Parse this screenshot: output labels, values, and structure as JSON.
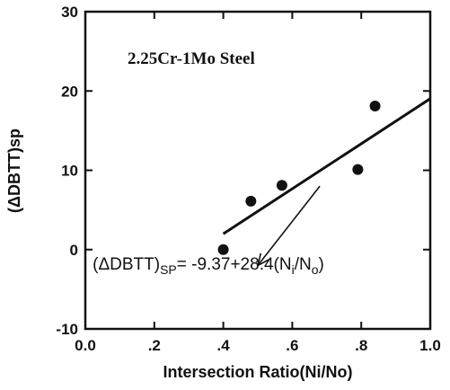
{
  "chart_data": {
    "type": "scatter",
    "title": "2.25Cr-1Mo Steel",
    "xlabel": "Intersection Ratio(Ni/No)",
    "ylabel": "(ΔDBTT)sp",
    "xlim": [
      0.0,
      1.0
    ],
    "ylim": [
      -10,
      30
    ],
    "x_tick_labels": [
      "0.0",
      ".2",
      ".4",
      ".6",
      ".8",
      "1.0"
    ],
    "y_tick_labels": [
      "-10",
      "0",
      "10",
      "20",
      "30"
    ],
    "x_tick_values": [
      0.0,
      0.2,
      0.4,
      0.6,
      0.8,
      1.0
    ],
    "y_tick_values": [
      -10,
      0,
      10,
      20,
      30
    ],
    "grid": false,
    "points": [
      {
        "x": 0.4,
        "y": 0.0
      },
      {
        "x": 0.48,
        "y": 6.1
      },
      {
        "x": 0.57,
        "y": 8.1
      },
      {
        "x": 0.79,
        "y": 10.1
      },
      {
        "x": 0.84,
        "y": 18.1
      }
    ],
    "fit_line": {
      "intercept": -9.37,
      "slope": 28.4,
      "x_range": [
        0.4,
        1.0
      ]
    },
    "annotation": {
      "parts": [
        "(ΔDBTT)",
        "SP",
        "= -9.37+28.4(N",
        "i",
        "/N",
        "o",
        ")"
      ],
      "arrow_from": {
        "x": 0.68,
        "y": 8.0
      },
      "arrow_to": {
        "x": 0.5,
        "y": -2.0
      }
    }
  }
}
